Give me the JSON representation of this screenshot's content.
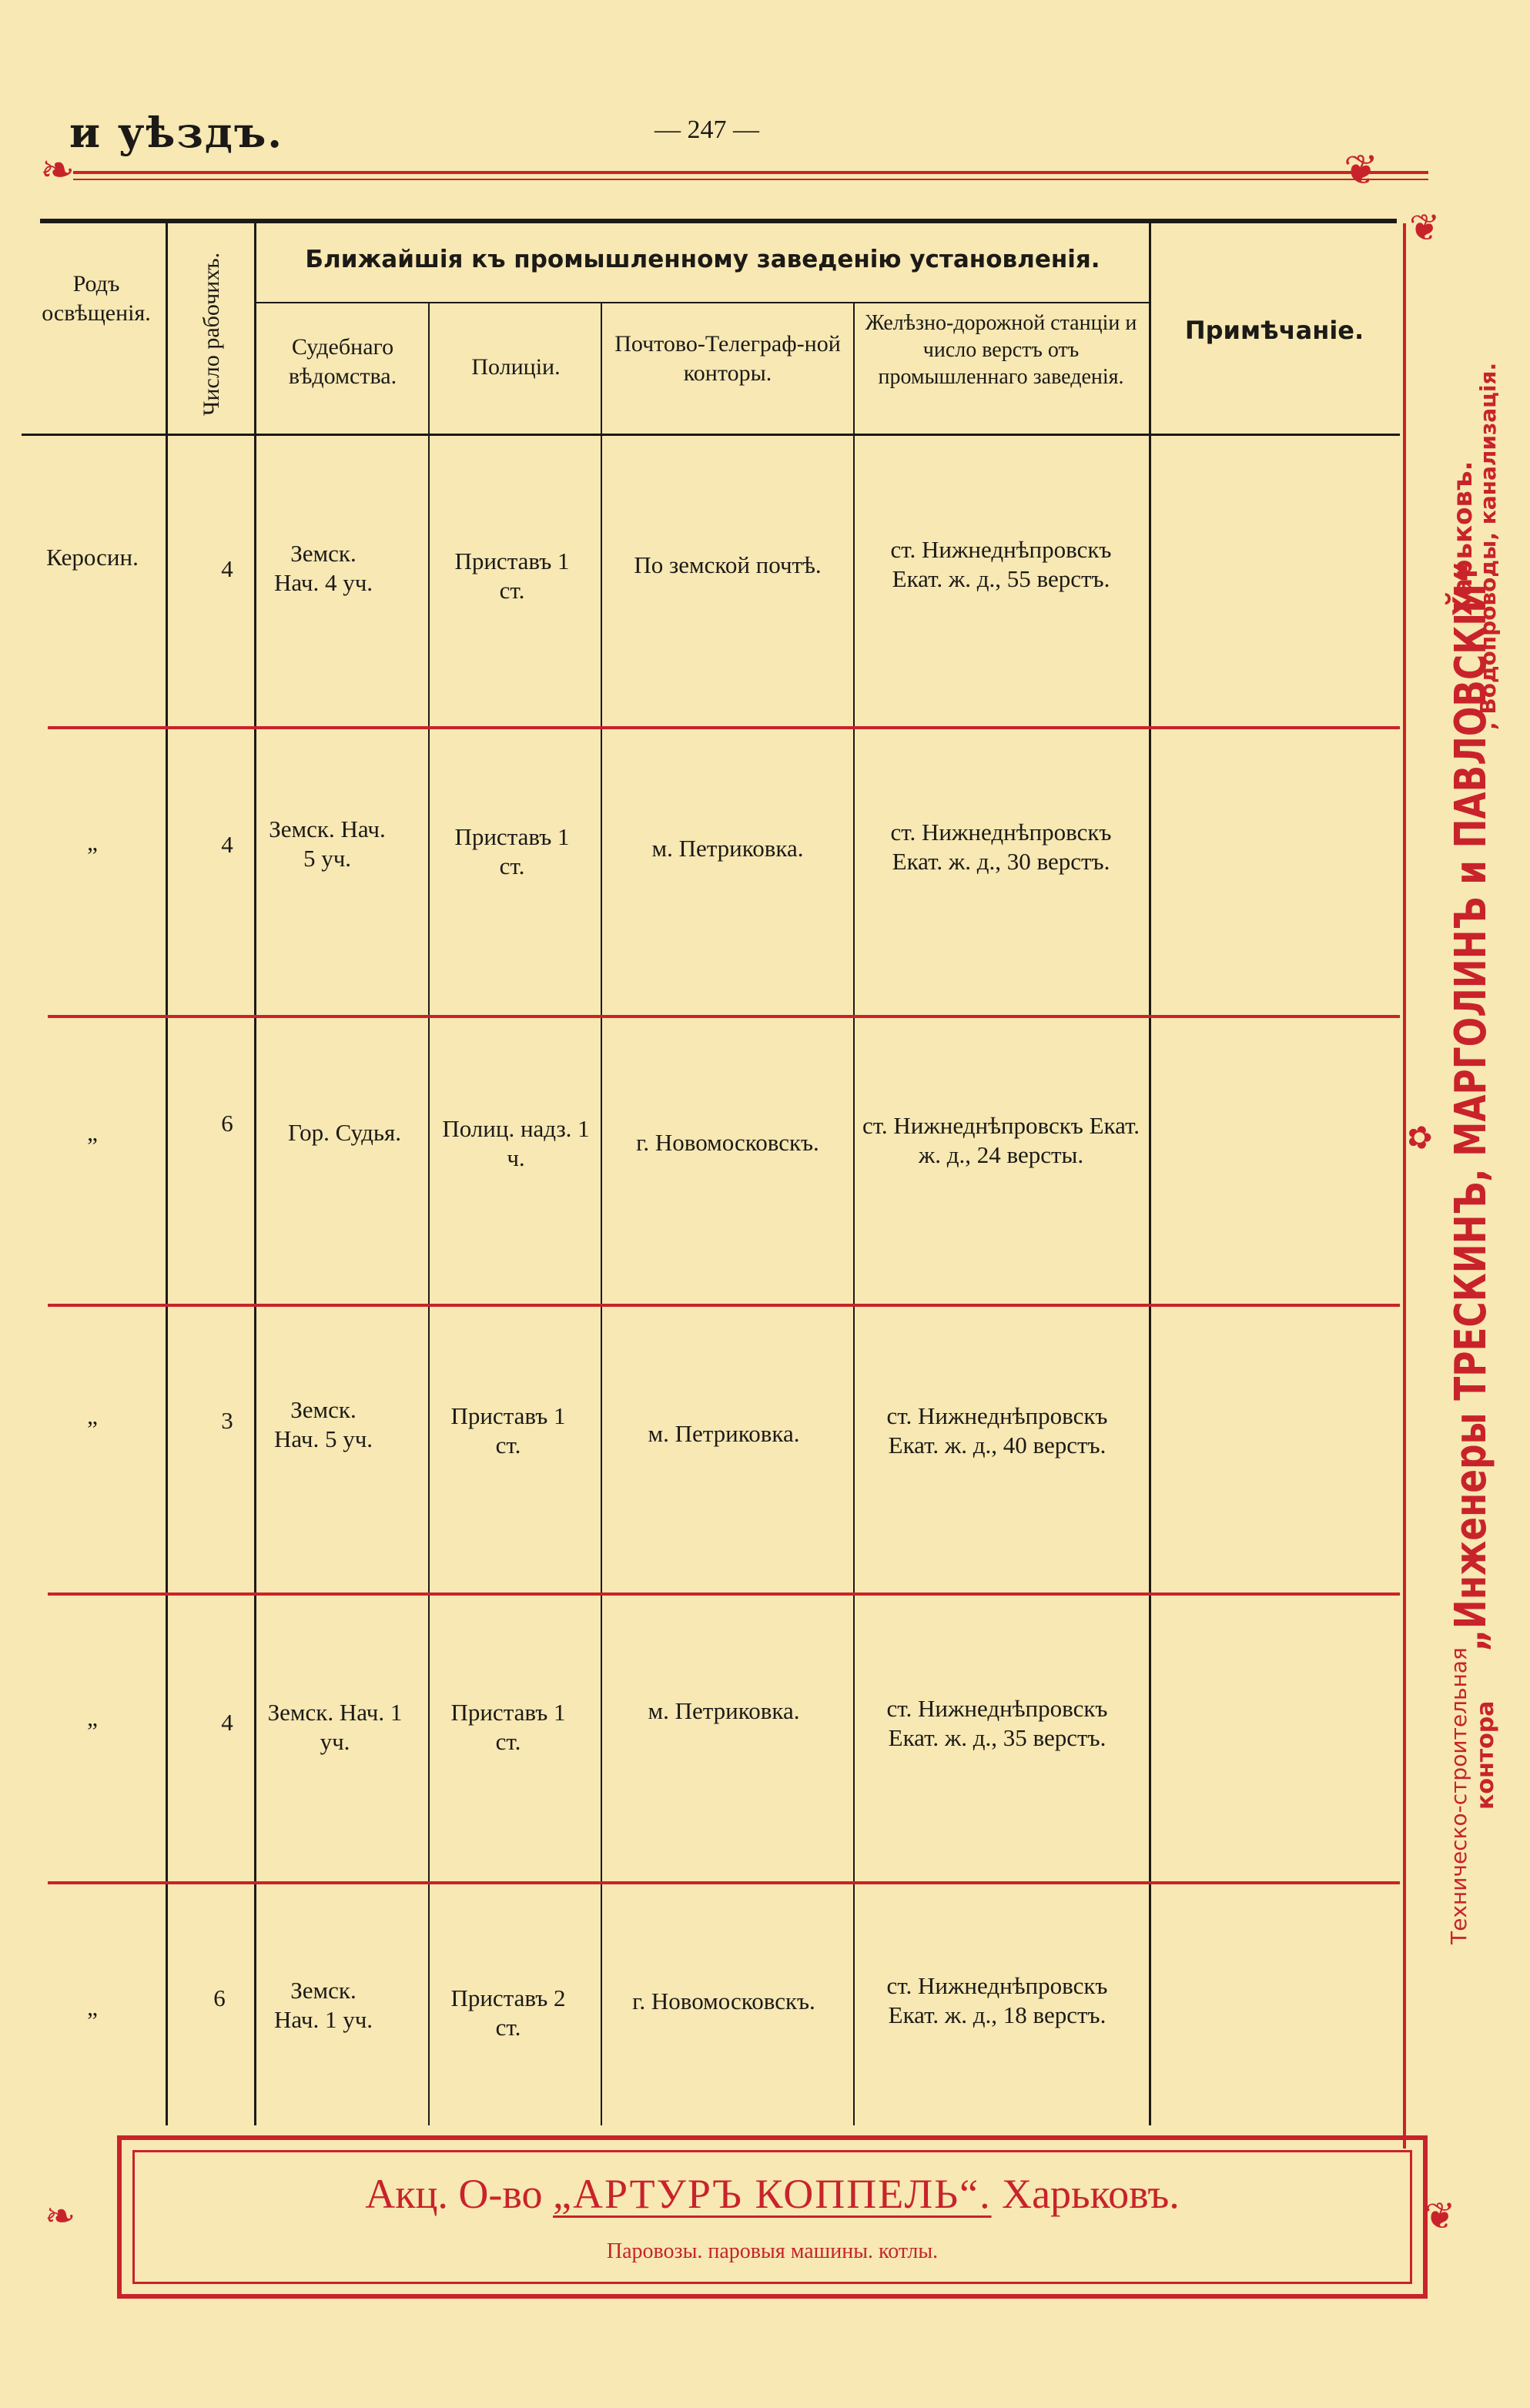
{
  "header": {
    "title": "и уѣздъ.",
    "page_number": "— 247 —"
  },
  "table": {
    "columns": {
      "lighting": "Родъ освѣщенія.",
      "workers": "Число рабочихъ.",
      "group": "Ближайшія къ промышленному заведенію установленія.",
      "court": "Судебнаго вѣдомства.",
      "police": "Полиціи.",
      "post": "Почтово-Телеграф-ной конторы.",
      "railway": "Желѣзно-дорожной станціи и число верстъ отъ промышленнаго заведенія.",
      "note": "Примѣчаніе."
    },
    "rows": [
      {
        "lighting": "Керосин.",
        "workers": "4",
        "court": "Земск. Нач. 4 уч.",
        "police": "Приставъ 1 ст.",
        "post": "По земской почтѣ.",
        "railway": "ст. Нижнеднѣпровскъ Екат. ж. д., 55 верстъ."
      },
      {
        "lighting": "„",
        "workers": "4",
        "court": "Земск. Нач. 5 уч.",
        "police": "Приставъ 1 ст.",
        "post": "м. Петриковка.",
        "railway": "ст. Нижнеднѣпровскъ Екат. ж. д., 30 верстъ."
      },
      {
        "lighting": "„",
        "workers": "6",
        "court": "Гор. Судья.",
        "police": "Полиц. надз. 1 ч.",
        "post": "г. Новомосковскъ.",
        "railway": "ст. Нижнеднѣпровскъ Екат. ж. д., 24 версты."
      },
      {
        "lighting": "„",
        "workers": "3",
        "court": "Земск. Нач. 5 уч.",
        "police": "Приставъ 1 ст.",
        "post": "м. Петриковка.",
        "railway": "ст. Нижнеднѣпровскъ Екат. ж. д., 40 верстъ."
      },
      {
        "lighting": "„",
        "workers": "4",
        "court": "Земск. Нач. 1 уч.",
        "police": "Приставъ 1 ст.",
        "post": "м. Петриковка.",
        "railway": "ст. Нижнеднѣпровскъ Екат. ж. д., 35 верстъ."
      },
      {
        "lighting": "„",
        "workers": "6",
        "court": "Земск. Нач. 1 уч.",
        "police": "Приставъ 2 ст.",
        "post": "г. Новомосковскъ.",
        "railway": "ст. Нижнеднѣпровскъ Екат. ж. д., 18 верстъ."
      }
    ]
  },
  "side_ad": {
    "line1": "Техническо-строительная",
    "line2": "контора",
    "main": "„Инженеры ТРЕСКИНЪ, МАРГОЛИНЪ и ПАВЛОВСКІЙ“",
    "city": "Харьковъ.",
    "services": ", Водопроводы, канализація."
  },
  "bottom_ad": {
    "prefix": "Акц. О-во ",
    "name": "„АРТУРЪ КОППЕЛЬ“.",
    "city": " Харьковъ.",
    "subtitle": "Паровозы. паровыя машины. котлы."
  }
}
